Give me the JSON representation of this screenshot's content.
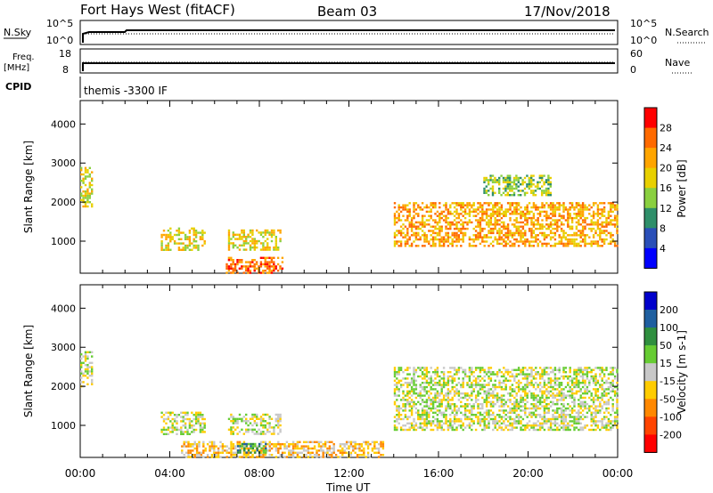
{
  "header": {
    "radar": "Fort Hays West (fitACF)",
    "beam": "Beam 03",
    "date": "17/Nov/2018"
  },
  "panels": {
    "nsky": {
      "left_label": "N.Sky",
      "left_ticks": [
        "10^5",
        "10^0"
      ],
      "right_ticks": [
        "10^5",
        "10^0"
      ],
      "right_label": "N.Search"
    },
    "freq": {
      "left_label_1": "Freq.",
      "left_label_2": "[MHz]",
      "left_ticks": [
        "18",
        "8"
      ],
      "right_ticks": [
        "60",
        "0"
      ],
      "right_label": "Nave"
    },
    "cpid": {
      "label": "CPID",
      "value": "themis -3300 IF"
    }
  },
  "chart_data": [
    {
      "type": "heatmap",
      "name_on_colorbar": "Power [dB]",
      "ylabel": "Slant Range [km]",
      "ylim": [
        180,
        4600
      ],
      "yticks": [
        1000,
        2000,
        3000,
        4000
      ],
      "xlim": [
        0,
        24
      ],
      "colorbar_ticks": [
        "28",
        "24",
        "20",
        "16",
        "12",
        "8",
        "4"
      ],
      "colorbar_colors": [
        "#ff0000",
        "#ff6a00",
        "#ffa500",
        "#e8d000",
        "#8ad040",
        "#2f8f6a",
        "#2a4fb8",
        "#0000ff"
      ],
      "regions": [
        {
          "t": [
            0.0,
            0.5
          ],
          "r": [
            1900,
            2900
          ],
          "level": "16"
        },
        {
          "t": [
            3.6,
            5.6
          ],
          "r": [
            800,
            1350
          ],
          "level": "16"
        },
        {
          "t": [
            6.6,
            8.9
          ],
          "r": [
            800,
            1300
          ],
          "level": "16"
        },
        {
          "t": [
            6.5,
            9.0
          ],
          "r": [
            200,
            600
          ],
          "level": "24"
        },
        {
          "t": [
            14.0,
            24.0
          ],
          "r": [
            900,
            2000
          ],
          "level": "20"
        },
        {
          "t": [
            18.0,
            21.0
          ],
          "r": [
            2200,
            2700
          ],
          "level": "12"
        }
      ]
    },
    {
      "type": "heatmap",
      "name_on_colorbar": "Velocity [m s-1]",
      "ylabel": "Slant Range [km]",
      "ylim": [
        180,
        4600
      ],
      "yticks": [
        1000,
        2000,
        3000,
        4000
      ],
      "xlim": [
        0,
        24
      ],
      "xticks": [
        "00:00",
        "04:00",
        "08:00",
        "12:00",
        "16:00",
        "20:00",
        "00:00"
      ],
      "xlabel": "Time UT",
      "colorbar_ticks": [
        "200",
        "100",
        "50",
        "15",
        "-15",
        "-50",
        "-100",
        "-200"
      ],
      "colorbar_colors": [
        "#0000cc",
        "#1f5fa0",
        "#2f8f3f",
        "#66cc33",
        "#c8c8c8",
        "#ffcc00",
        "#ff8800",
        "#ff4400",
        "#ff0000"
      ],
      "regions": [
        {
          "t": [
            0.0,
            0.5
          ],
          "r": [
            2000,
            2900
          ],
          "level": "-15"
        },
        {
          "t": [
            3.6,
            5.6
          ],
          "r": [
            800,
            1350
          ],
          "level": "-15"
        },
        {
          "t": [
            6.6,
            8.9
          ],
          "r": [
            800,
            1300
          ],
          "level": "-15"
        },
        {
          "t": [
            4.5,
            13.5
          ],
          "r": [
            200,
            600
          ],
          "level": "-50"
        },
        {
          "t": [
            7.0,
            8.3
          ],
          "r": [
            300,
            550
          ],
          "level": "50"
        },
        {
          "t": [
            14.0,
            24.0
          ],
          "r": [
            900,
            2500
          ],
          "level": "-15"
        }
      ]
    }
  ]
}
